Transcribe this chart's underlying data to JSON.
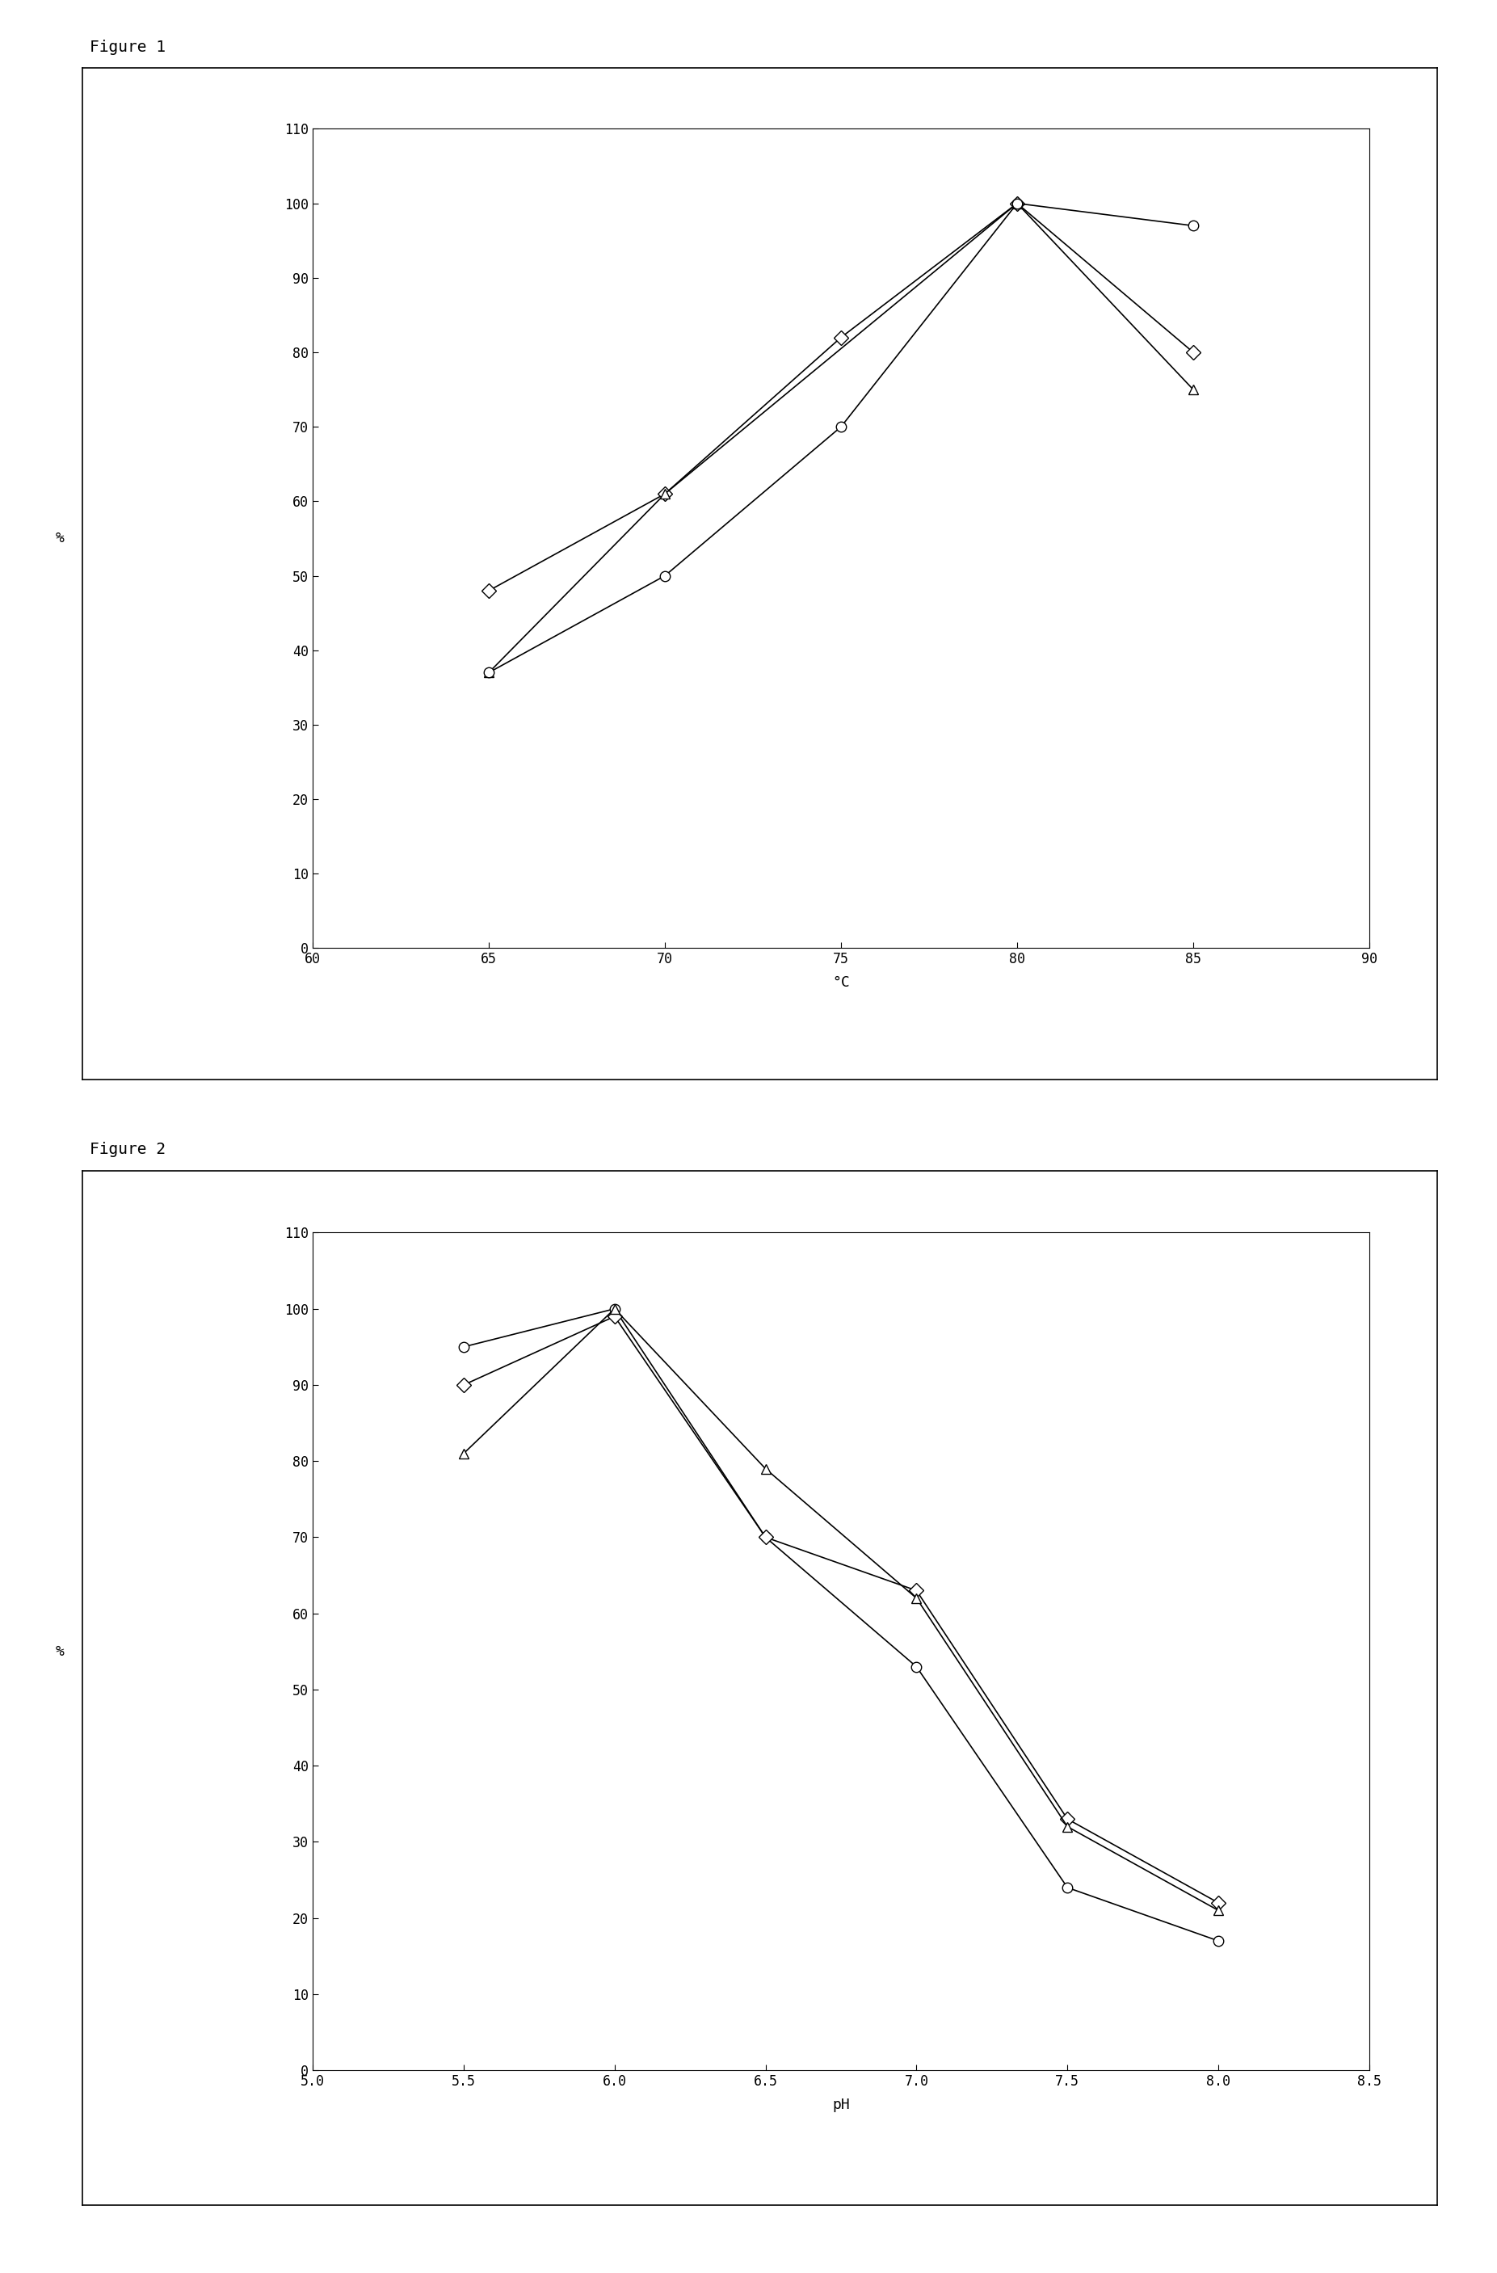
{
  "fig1": {
    "label": "Figure 1",
    "xlabel": "°C",
    "ylabel": "%",
    "xlim": [
      60,
      90
    ],
    "ylim": [
      0,
      110
    ],
    "xticks": [
      60,
      65,
      70,
      75,
      80,
      85,
      90
    ],
    "yticks": [
      0,
      10,
      20,
      30,
      40,
      50,
      60,
      70,
      80,
      90,
      100,
      110
    ],
    "series": [
      {
        "x": [
          65,
          70,
          75,
          80,
          85
        ],
        "y": [
          48,
          61,
          82,
          100,
          80
        ],
        "marker": "D"
      },
      {
        "x": [
          65,
          70,
          80,
          85
        ],
        "y": [
          37,
          61,
          100,
          75
        ],
        "marker": "^"
      },
      {
        "x": [
          65,
          70,
          75,
          80,
          85
        ],
        "y": [
          37,
          50,
          70,
          100,
          97
        ],
        "marker": "o"
      }
    ]
  },
  "fig2": {
    "label": "Figure 2",
    "xlabel": "pH",
    "ylabel": "%",
    "xlim": [
      5.0,
      8.5
    ],
    "ylim": [
      0,
      110
    ],
    "xticks": [
      5.0,
      5.5,
      6.0,
      6.5,
      7.0,
      7.5,
      8.0,
      8.5
    ],
    "yticks": [
      0,
      10,
      20,
      30,
      40,
      50,
      60,
      70,
      80,
      90,
      100,
      110
    ],
    "series": [
      {
        "x": [
          5.5,
          6.0,
          6.5,
          7.0,
          7.5,
          8.0
        ],
        "y": [
          95,
          100,
          70,
          53,
          24,
          17
        ],
        "marker": "o"
      },
      {
        "x": [
          5.5,
          6.0,
          6.5,
          7.0,
          7.5,
          8.0
        ],
        "y": [
          90,
          99,
          70,
          63,
          33,
          22
        ],
        "marker": "D"
      },
      {
        "x": [
          5.5,
          6.0,
          6.5,
          7.0,
          7.5,
          8.0
        ],
        "y": [
          81,
          100,
          79,
          62,
          32,
          21
        ],
        "marker": "^"
      }
    ]
  },
  "line_color": "#000000",
  "marker_size": 9,
  "marker_facecolor": "white",
  "font_family": "monospace",
  "label_fontsize": 14,
  "tick_fontsize": 12,
  "axis_label_fontsize": 13
}
